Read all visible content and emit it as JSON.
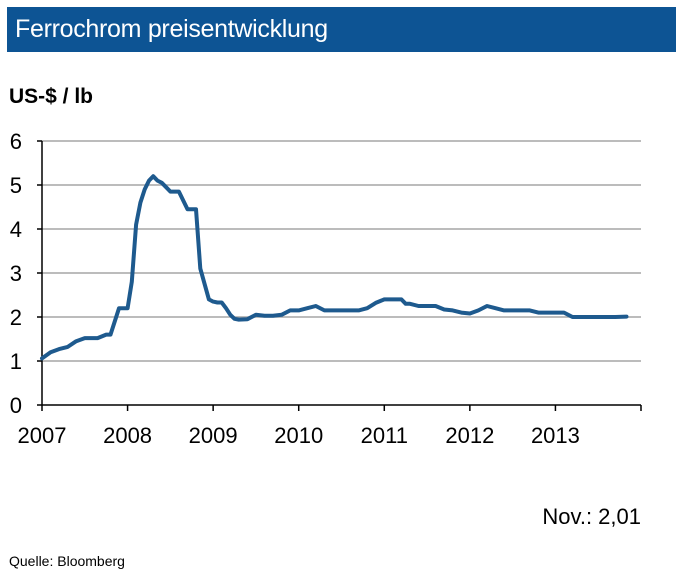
{
  "header": {
    "title": "Ferrochrom preisentwicklung",
    "title_bg": "#0d5494"
  },
  "chart_data": {
    "type": "line",
    "ylabel": "US-$ / lb",
    "ylim": [
      0,
      6
    ],
    "yticks": [
      "0",
      "1",
      "2",
      "3",
      "4",
      "5",
      "6"
    ],
    "xlim": [
      2007,
      2014
    ],
    "xticks": [
      "2007",
      "2008",
      "2009",
      "2010",
      "2011",
      "2012",
      "2013"
    ],
    "grid": true,
    "line_color": "#1e5a8e",
    "series": [
      {
        "x": [
          2007.0,
          2007.1,
          2007.2,
          2007.3,
          2007.4,
          2007.5,
          2007.55,
          2007.65,
          2007.75,
          2007.8,
          2007.9,
          2007.95,
          2008.0,
          2008.05,
          2008.1,
          2008.15,
          2008.2,
          2008.25,
          2008.3,
          2008.35,
          2008.4,
          2008.45,
          2008.5,
          2008.6,
          2008.7,
          2008.8,
          2008.85,
          2008.95,
          2009.0,
          2009.05,
          2009.1,
          2009.15,
          2009.2,
          2009.25,
          2009.3,
          2009.4,
          2009.5,
          2009.6,
          2009.7,
          2009.8,
          2009.9,
          2010.0,
          2010.1,
          2010.2,
          2010.3,
          2010.4,
          2010.45,
          2010.5,
          2010.6,
          2010.7,
          2010.8,
          2010.9,
          2011.0,
          2011.1,
          2011.2,
          2011.25,
          2011.3,
          2011.4,
          2011.5,
          2011.6,
          2011.7,
          2011.8,
          2011.9,
          2012.0,
          2012.1,
          2012.2,
          2012.3,
          2012.4,
          2012.5,
          2012.6,
          2012.7,
          2012.8,
          2012.9,
          2013.0,
          2013.1,
          2013.2,
          2013.3,
          2013.4,
          2013.5,
          2013.6,
          2013.7,
          2013.83
        ],
        "y": [
          1.06,
          1.2,
          1.27,
          1.32,
          1.45,
          1.52,
          1.52,
          1.52,
          1.6,
          1.6,
          2.2,
          2.2,
          2.2,
          2.8,
          4.1,
          4.6,
          4.9,
          5.1,
          5.2,
          5.1,
          5.05,
          4.95,
          4.85,
          4.85,
          4.45,
          4.45,
          3.1,
          2.4,
          2.35,
          2.33,
          2.33,
          2.2,
          2.05,
          1.96,
          1.94,
          1.95,
          2.05,
          2.03,
          2.03,
          2.05,
          2.15,
          2.15,
          2.2,
          2.25,
          2.15,
          2.15,
          2.15,
          2.15,
          2.15,
          2.15,
          2.2,
          2.32,
          2.4,
          2.4,
          2.4,
          2.3,
          2.3,
          2.25,
          2.25,
          2.25,
          2.17,
          2.15,
          2.1,
          2.08,
          2.15,
          2.25,
          2.2,
          2.15,
          2.15,
          2.15,
          2.15,
          2.1,
          2.1,
          2.1,
          2.1,
          2.0,
          2.0,
          2.0,
          2.0,
          2.0,
          2.0,
          2.01
        ]
      }
    ]
  },
  "footnote": "Nov.: 2,01",
  "source": "Quelle:  Bloomberg"
}
